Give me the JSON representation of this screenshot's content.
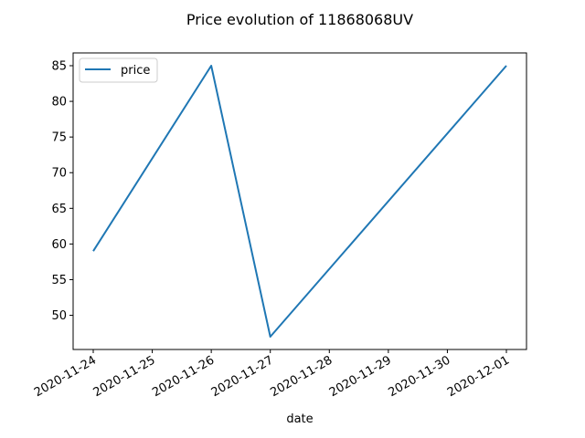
{
  "chart_data": {
    "type": "line",
    "title": "Price evolution of 11868068UV",
    "xlabel": "date",
    "ylabel": "",
    "x": [
      "2020-11-24",
      "2020-11-26",
      "2020-11-27",
      "2020-12-01"
    ],
    "series": [
      {
        "name": "price",
        "color": "#1f77b4",
        "values": [
          59,
          85,
          47,
          85
        ]
      }
    ],
    "x_ticks": [
      "2020-11-24",
      "2020-11-25",
      "2020-11-26",
      "2020-11-27",
      "2020-11-28",
      "2020-11-29",
      "2020-11-30",
      "2020-12-01"
    ],
    "y_ticks": [
      50,
      55,
      60,
      65,
      70,
      75,
      80,
      85
    ],
    "xlim": [
      "2020-11-24",
      "2020-12-01"
    ],
    "ylim": [
      47,
      85
    ],
    "grid": false,
    "legend": "top-left"
  }
}
